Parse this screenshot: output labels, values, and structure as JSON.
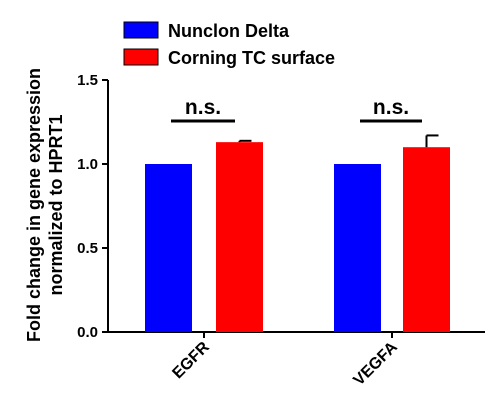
{
  "chart_data": {
    "type": "bar",
    "categories": [
      "EGFR",
      "VEGFA"
    ],
    "series": [
      {
        "name": "Nunclon Delta",
        "values": [
          1.0,
          1.0
        ],
        "error": [
          0.0,
          0.0
        ],
        "color": "#0000ff"
      },
      {
        "name": "Corning TC surface",
        "values": [
          1.13,
          1.1
        ],
        "error": [
          0.008,
          0.07
        ],
        "color": "#ff0000"
      }
    ],
    "title": "",
    "xlabel": "",
    "ylabel_lines": [
      "Fold change in gene expression",
      "normalized to HPRT1"
    ],
    "ylim": [
      0,
      1.5
    ],
    "yticks": [
      0.0,
      0.5,
      1.0,
      1.5
    ],
    "ytick_labels": [
      "0.0",
      "0.5",
      "1.0",
      "1.5"
    ],
    "grid": false,
    "legend_position": "top",
    "annotations": [
      {
        "category": "EGFR",
        "text": "n.s."
      },
      {
        "category": "VEGFA",
        "text": "n.s."
      }
    ]
  }
}
